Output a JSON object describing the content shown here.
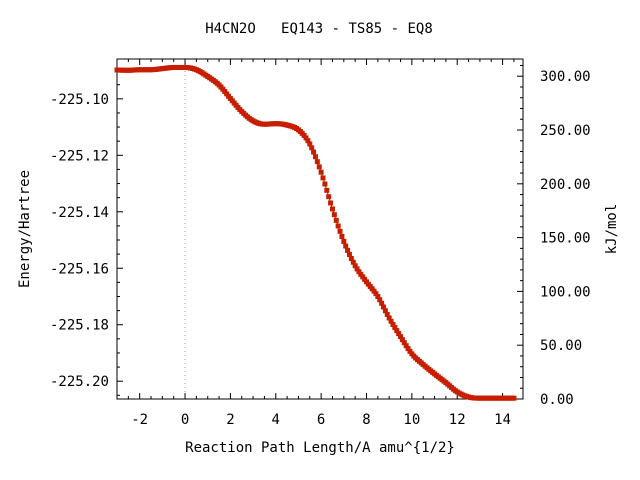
{
  "chart_data": {
    "type": "line",
    "title": "H4CN2O   EQ143 - TS85 - EQ8",
    "xlabel": "Reaction Path Length/A amu^{1/2}",
    "ylabel": "Energy/Hartree",
    "y2label": "kJ/mol",
    "xlim": [
      -3.0,
      14.9
    ],
    "ylim": [
      -225.2063,
      -225.0859
    ],
    "y2lim": [
      0.0,
      316.0
    ],
    "x_ticks": [
      "-2",
      "0",
      "2",
      "4",
      "6",
      "8",
      "10",
      "12",
      "14"
    ],
    "y_ticks": [
      "-225.10",
      "-225.12",
      "-225.14",
      "-225.16",
      "-225.18",
      "-225.20"
    ],
    "y2_ticks": [
      "300.00",
      "250.00",
      "200.00",
      "150.00",
      "100.00",
      "50.00",
      "0.00"
    ],
    "ts_marker_x": 0.0,
    "grid": false,
    "legend": "none",
    "line_color": "#008000",
    "marker_color": "#c81e00",
    "series": [
      {
        "x": [
          -3.0,
          -2.5,
          -2.0,
          -1.5,
          -1.0,
          -0.5,
          0.0,
          0.5,
          1.0,
          1.5,
          2.0,
          2.5,
          3.0,
          3.5,
          4.0,
          4.5,
          5.0,
          5.5,
          6.0,
          6.5,
          7.0,
          7.5,
          8.0,
          8.5,
          9.0,
          9.5,
          10.0,
          10.5,
          11.0,
          11.5,
          12.0,
          12.5,
          13.0,
          13.5,
          14.0,
          14.5
        ],
        "values": [
          -225.0898,
          -225.0899,
          -225.0897,
          -225.0897,
          -225.0893,
          -225.0889,
          -225.0889,
          -225.0897,
          -225.0921,
          -225.0951,
          -225.0999,
          -225.1045,
          -225.1078,
          -225.109,
          -225.1088,
          -225.1093,
          -225.111,
          -225.116,
          -225.126,
          -225.139,
          -225.1505,
          -225.1591,
          -225.1648,
          -225.17,
          -225.1776,
          -225.1842,
          -225.1903,
          -225.1941,
          -225.1974,
          -225.2005,
          -225.2038,
          -225.2056,
          -225.206,
          -225.206,
          -225.206,
          -225.206
        ]
      }
    ]
  }
}
